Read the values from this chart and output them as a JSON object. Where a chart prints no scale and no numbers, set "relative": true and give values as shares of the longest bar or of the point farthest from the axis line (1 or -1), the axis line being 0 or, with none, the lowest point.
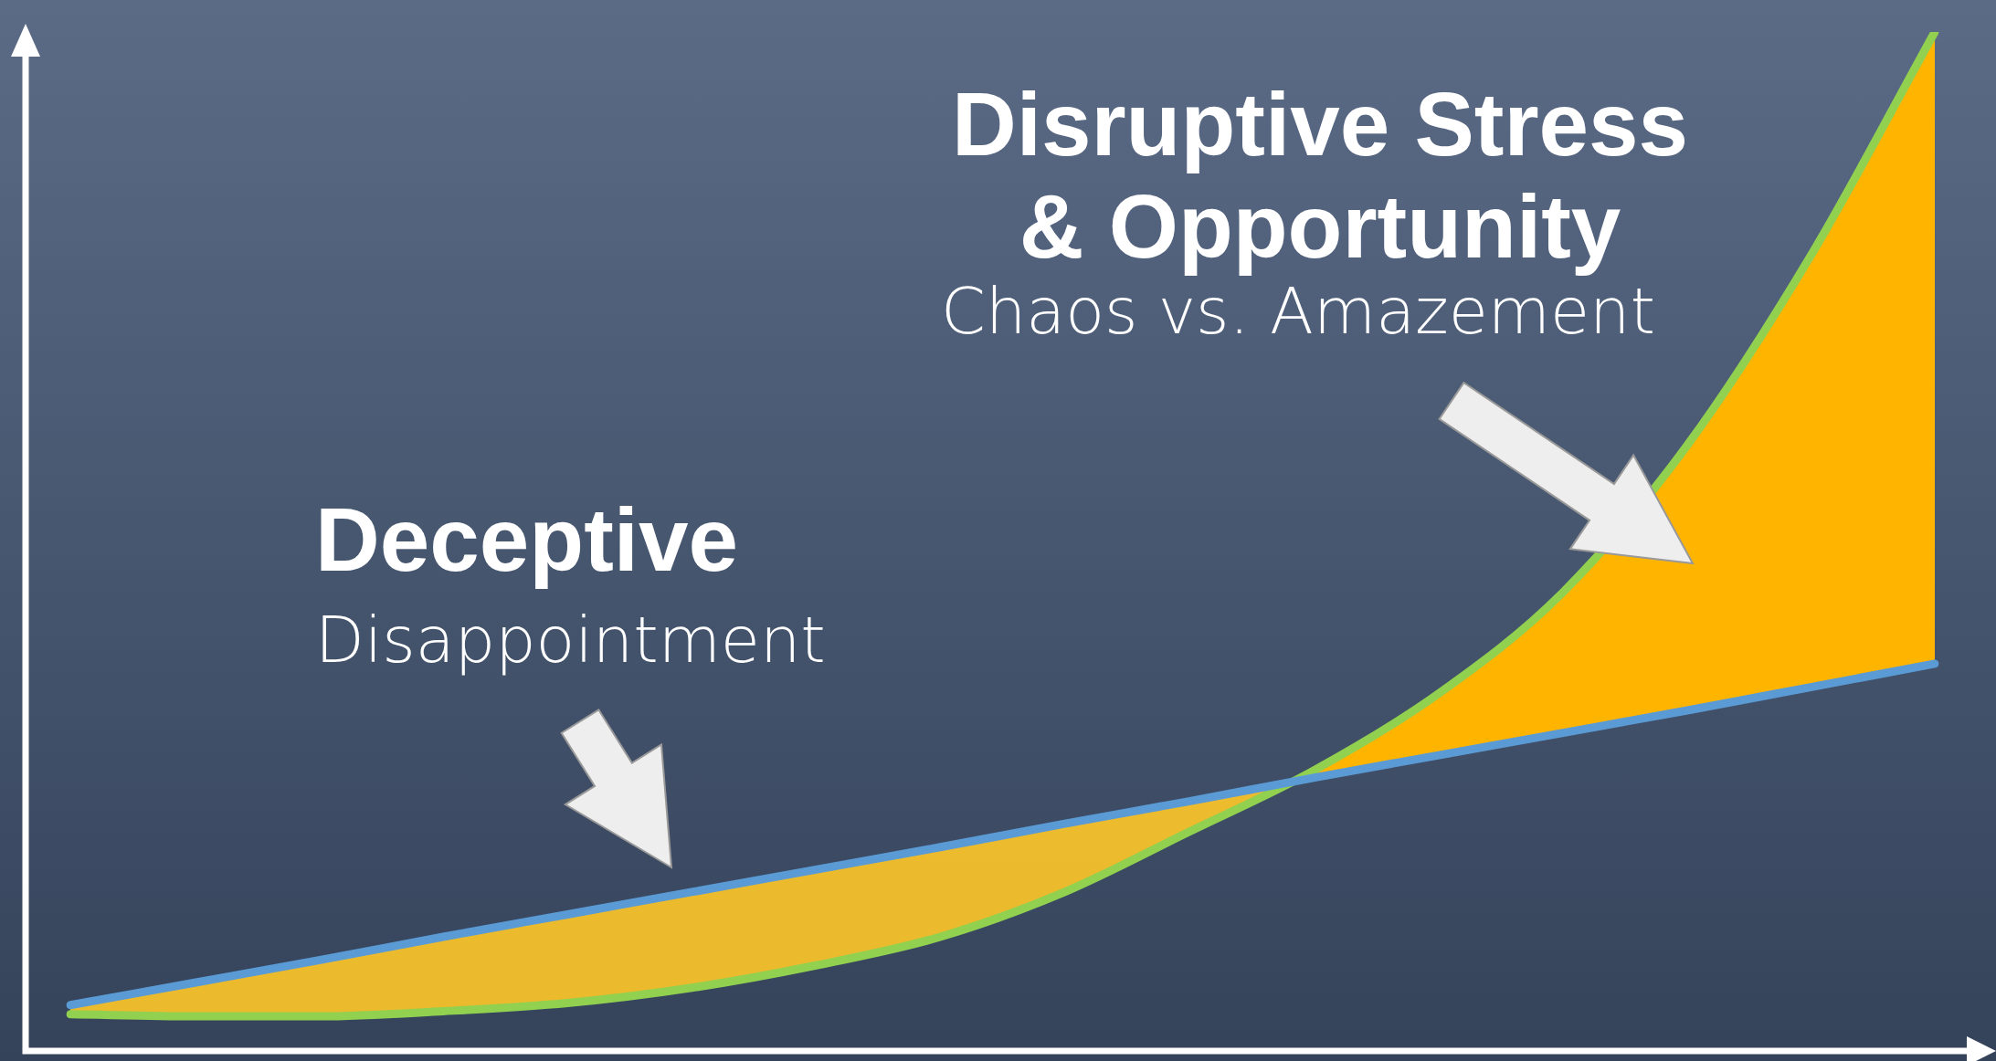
{
  "chart_data": {
    "type": "line",
    "relative": true,
    "categories": [
      null,
      null,
      null,
      null,
      null,
      null,
      null,
      null,
      null,
      null,
      null,
      null,
      null,
      null,
      null,
      null
    ],
    "series": [
      {
        "color": "#5b9bd5",
        "values": [
          0.045,
          0.067,
          0.089,
          0.112,
          0.134,
          0.156,
          0.178,
          0.2,
          0.223,
          0.245,
          0.268,
          0.29,
          0.312,
          0.334,
          0.357,
          0.38
        ]
      },
      {
        "color": "#92d050",
        "values": [
          0.036,
          0.034,
          0.034,
          0.039,
          0.047,
          0.062,
          0.084,
          0.112,
          0.156,
          0.215,
          0.275,
          0.35,
          0.449,
          0.593,
          0.78,
          1
        ]
      }
    ],
    "annotations": [
      "Disruptive Stress & Opportunity",
      "Chaos vs. Amazement",
      "Deceptive",
      "Disappointment"
    ],
    "marker": "none",
    "line_style": "solid"
  }
}
